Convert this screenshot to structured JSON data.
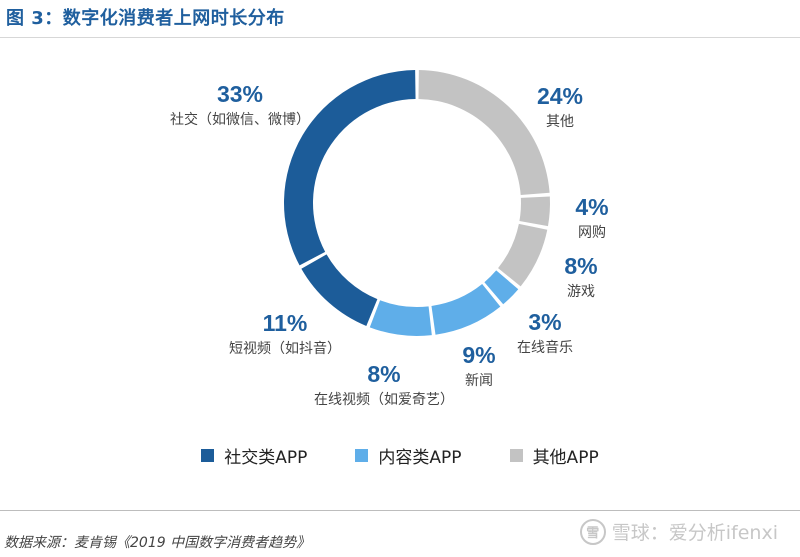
{
  "header": {
    "title": "图 3：数字化消费者上网时长分布"
  },
  "chart_data": {
    "type": "pie",
    "title": "图 3：数字化消费者上网时长分布",
    "donut": true,
    "slices": [
      {
        "label": "其他",
        "value": 24,
        "pct_label": "24%",
        "group": "其他APP"
      },
      {
        "label": "网购",
        "value": 4,
        "pct_label": "4%",
        "group": "其他APP"
      },
      {
        "label": "游戏",
        "value": 8,
        "pct_label": "8%",
        "group": "其他APP"
      },
      {
        "label": "在线音乐",
        "value": 3,
        "pct_label": "3%",
        "group": "内容类APP"
      },
      {
        "label": "新闻",
        "value": 9,
        "pct_label": "9%",
        "group": "内容类APP"
      },
      {
        "label": "在线视频（如爱奇艺）",
        "value": 8,
        "pct_label": "8%",
        "group": "内容类APP"
      },
      {
        "label": "短视频（如抖音）",
        "value": 11,
        "pct_label": "11%",
        "group": "社交类APP"
      },
      {
        "label": "社交（如微信、微博）",
        "value": 33,
        "pct_label": "33%",
        "group": "社交类APP"
      }
    ],
    "legend": [
      {
        "name": "社交类APP",
        "color": "#1c5c99"
      },
      {
        "name": "内容类APP",
        "color": "#5faee9"
      },
      {
        "name": "其他APP",
        "color": "#c3c3c3"
      }
    ],
    "legend_position": "bottom"
  },
  "footer": {
    "source": "数据来源：麦肯锡《2019 中国数字消费者趋势》",
    "watermark": "雪球：爱分析ifenxi",
    "watermark_logo_text": "雪"
  }
}
